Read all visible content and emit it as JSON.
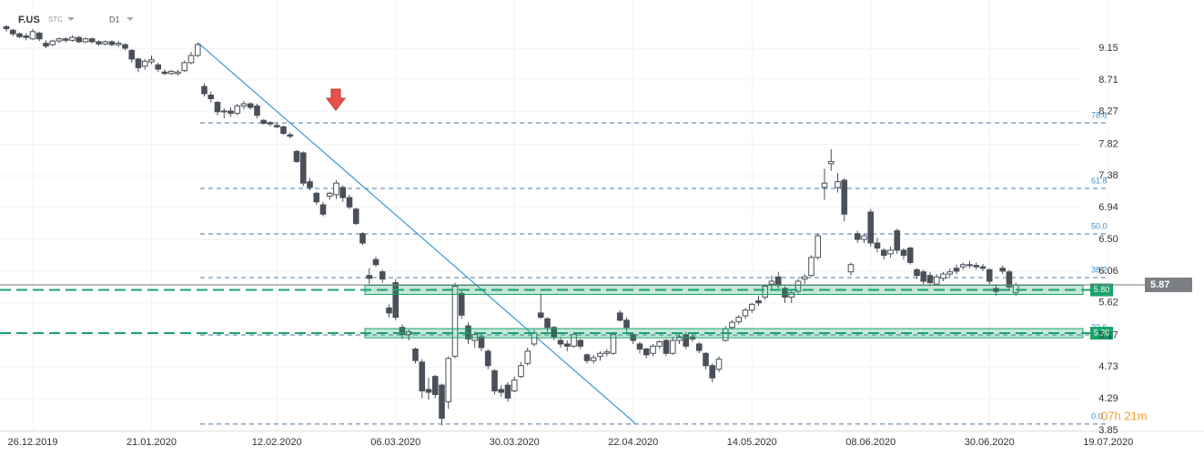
{
  "header": {
    "symbol": "F.US",
    "source": "STC",
    "interval": "D1"
  },
  "chart_data": {
    "type": "candlestick",
    "categories": [
      null,
      null,
      null,
      null,
      "26.12.2019",
      null,
      null,
      null,
      null,
      null,
      null,
      null,
      null,
      null,
      null,
      null,
      null,
      null,
      null,
      null,
      null,
      null,
      "21.01.2020",
      null,
      null,
      null,
      null,
      null,
      null,
      null,
      null,
      null,
      null,
      null,
      null,
      null,
      null,
      null,
      null,
      null,
      null,
      "12.02.2020",
      null,
      null,
      null,
      null,
      null,
      null,
      null,
      null,
      null,
      null,
      null,
      null,
      null,
      null,
      null,
      null,
      null,
      "06.03.2020",
      null,
      null,
      null,
      null,
      null,
      null,
      null,
      null,
      null,
      null,
      null,
      null,
      null,
      null,
      null,
      null,
      null,
      "30.03.2020",
      null,
      null,
      null,
      null,
      null,
      null,
      null,
      null,
      null,
      null,
      null,
      null,
      null,
      null,
      null,
      null,
      null,
      "22.04.2020",
      null,
      null,
      null,
      null,
      null,
      null,
      null,
      null,
      null,
      null,
      null,
      null,
      null,
      null,
      null,
      null,
      null,
      "14.05.2020",
      null,
      null,
      null,
      null,
      null,
      null,
      null,
      null,
      null,
      null,
      null,
      null,
      null,
      null,
      null,
      null,
      null,
      "08.06.2020",
      null,
      null,
      null,
      null,
      null,
      null,
      null,
      null,
      null,
      null,
      null,
      null,
      null,
      null,
      null,
      null,
      null,
      "30.06.2020",
      null,
      null,
      null,
      null,
      null,
      null,
      null,
      null,
      null,
      null,
      null,
      null,
      null,
      null,
      null,
      null,
      null,
      "19.07.2020"
    ],
    "candles": [
      [
        9.45,
        9.47,
        9.38,
        9.42
      ],
      [
        9.4,
        9.42,
        9.32,
        9.35
      ],
      [
        9.35,
        9.37,
        9.29,
        9.31
      ],
      [
        9.32,
        9.36,
        9.26,
        9.3
      ],
      [
        9.28,
        9.42,
        9.26,
        9.38
      ],
      [
        9.36,
        9.38,
        9.25,
        9.28
      ],
      [
        9.22,
        9.26,
        9.15,
        9.18
      ],
      [
        9.2,
        9.27,
        9.18,
        9.25
      ],
      [
        9.25,
        9.3,
        9.22,
        9.28
      ],
      [
        9.28,
        9.3,
        9.23,
        9.26
      ],
      [
        9.26,
        9.33,
        9.24,
        9.3
      ],
      [
        9.3,
        9.32,
        9.22,
        9.24
      ],
      [
        9.24,
        9.3,
        9.22,
        9.28
      ],
      [
        9.28,
        9.3,
        9.22,
        9.24
      ],
      [
        9.24,
        9.26,
        9.18,
        9.21
      ],
      [
        9.21,
        9.26,
        9.19,
        9.24
      ],
      [
        9.24,
        9.26,
        9.18,
        9.2
      ],
      [
        9.2,
        9.25,
        9.17,
        9.22
      ],
      [
        9.2,
        9.22,
        9.12,
        9.15
      ],
      [
        9.12,
        9.14,
        8.95,
        9.0
      ],
      [
        9.0,
        9.02,
        8.82,
        8.88
      ],
      [
        8.9,
        9.0,
        8.85,
        8.97
      ],
      [
        8.96,
        9.05,
        8.93,
        8.99
      ],
      [
        8.92,
        8.95,
        8.82,
        8.86
      ],
      [
        8.82,
        8.86,
        8.78,
        8.8
      ],
      [
        8.8,
        8.85,
        8.78,
        8.83
      ],
      [
        8.8,
        8.85,
        8.77,
        8.82
      ],
      [
        8.84,
        8.98,
        8.82,
        8.95
      ],
      [
        8.95,
        9.1,
        8.93,
        9.05
      ],
      [
        9.05,
        9.22,
        9.03,
        9.2
      ],
      [
        8.62,
        8.66,
        8.48,
        8.52
      ],
      [
        8.5,
        8.55,
        8.4,
        8.45
      ],
      [
        8.4,
        8.42,
        8.22,
        8.27
      ],
      [
        8.27,
        8.32,
        8.18,
        8.28
      ],
      [
        8.28,
        8.33,
        8.2,
        8.25
      ],
      [
        8.25,
        8.38,
        8.22,
        8.35
      ],
      [
        8.35,
        8.42,
        8.3,
        8.38
      ],
      [
        8.38,
        8.4,
        8.3,
        8.33
      ],
      [
        8.35,
        8.38,
        8.18,
        8.22
      ],
      [
        8.15,
        8.17,
        8.09,
        8.11
      ],
      [
        8.12,
        8.14,
        8.07,
        8.1
      ],
      [
        8.08,
        8.12,
        8.04,
        8.06
      ],
      [
        8.06,
        8.08,
        7.95,
        7.97
      ],
      [
        7.95,
        7.98,
        7.9,
        7.93
      ],
      [
        7.72,
        7.74,
        7.56,
        7.58
      ],
      [
        7.7,
        7.72,
        7.24,
        7.28
      ],
      [
        7.3,
        7.35,
        7.18,
        7.22
      ],
      [
        7.14,
        7.16,
        6.98,
        7.02
      ],
      [
        6.98,
        7.02,
        6.82,
        6.85
      ],
      [
        7.1,
        7.16,
        7.05,
        7.14
      ],
      [
        7.12,
        7.32,
        7.06,
        7.28
      ],
      [
        7.22,
        7.25,
        7.02,
        7.08
      ],
      [
        7.08,
        7.12,
        6.92,
        6.95
      ],
      [
        6.92,
        6.94,
        6.7,
        6.72
      ],
      [
        6.58,
        6.6,
        6.42,
        6.45
      ],
      [
        6.0,
        6.1,
        5.88,
        5.96
      ],
      [
        6.22,
        6.26,
        6.12,
        6.15
      ],
      [
        6.05,
        6.08,
        5.9,
        5.95
      ],
      [
        5.55,
        5.6,
        5.42,
        5.48
      ],
      [
        5.9,
        5.95,
        5.38,
        5.42
      ],
      [
        5.28,
        5.32,
        5.12,
        5.18
      ],
      [
        5.18,
        5.25,
        5.1,
        5.22
      ],
      [
        4.98,
        5.0,
        4.78,
        4.82
      ],
      [
        4.8,
        4.84,
        4.3,
        4.4
      ],
      [
        4.42,
        4.58,
        4.28,
        4.38
      ],
      [
        4.6,
        4.62,
        4.3,
        4.35
      ],
      [
        4.48,
        4.5,
        3.92,
        4.02
      ],
      [
        4.25,
        4.88,
        4.15,
        4.85
      ],
      [
        4.88,
        5.9,
        4.85,
        5.85
      ],
      [
        5.75,
        5.8,
        5.4,
        5.45
      ],
      [
        5.3,
        5.35,
        5.05,
        5.12
      ],
      [
        5.1,
        5.22,
        5.0,
        5.18
      ],
      [
        5.15,
        5.18,
        4.95,
        5.0
      ],
      [
        4.95,
        4.98,
        4.7,
        4.75
      ],
      [
        4.68,
        4.7,
        4.35,
        4.4
      ],
      [
        4.42,
        4.48,
        4.32,
        4.38
      ],
      [
        4.48,
        4.52,
        4.25,
        4.3
      ],
      [
        4.4,
        4.6,
        4.38,
        4.55
      ],
      [
        4.6,
        4.8,
        4.58,
        4.75
      ],
      [
        4.78,
        5.0,
        4.75,
        4.95
      ],
      [
        5.05,
        5.25,
        5.02,
        5.2
      ],
      [
        5.48,
        5.75,
        5.4,
        5.42
      ],
      [
        5.4,
        5.42,
        5.22,
        5.28
      ],
      [
        5.28,
        5.3,
        5.1,
        5.15
      ],
      [
        5.1,
        5.15,
        5.0,
        5.05
      ],
      [
        5.05,
        5.1,
        4.95,
        5.02
      ],
      [
        5.02,
        5.22,
        5.0,
        5.18
      ],
      [
        5.1,
        5.12,
        4.98,
        5.02
      ],
      [
        4.9,
        4.92,
        4.78,
        4.82
      ],
      [
        4.82,
        4.9,
        4.78,
        4.86
      ],
      [
        4.88,
        4.95,
        4.82,
        4.92
      ],
      [
        4.92,
        4.98,
        4.88,
        4.94
      ],
      [
        4.92,
        5.2,
        4.9,
        5.18
      ],
      [
        5.48,
        5.52,
        5.36,
        5.38
      ],
      [
        5.38,
        5.42,
        5.22,
        5.28
      ],
      [
        5.18,
        5.2,
        5.05,
        5.1
      ],
      [
        5.05,
        5.08,
        4.92,
        4.98
      ],
      [
        4.98,
        5.0,
        4.85,
        4.9
      ],
      [
        4.92,
        5.05,
        4.88,
        5.02
      ],
      [
        5.02,
        5.1,
        4.98,
        5.08
      ],
      [
        5.1,
        5.12,
        4.88,
        4.92
      ],
      [
        4.92,
        5.15,
        4.9,
        5.1
      ],
      [
        5.1,
        5.18,
        5.05,
        5.15
      ],
      [
        5.18,
        5.22,
        4.98,
        5.02
      ],
      [
        5.15,
        5.2,
        5.08,
        5.12
      ],
      [
        5.05,
        5.08,
        4.92,
        4.96
      ],
      [
        4.92,
        4.94,
        4.7,
        4.75
      ],
      [
        4.75,
        4.78,
        4.52,
        4.58
      ],
      [
        4.7,
        4.88,
        4.66,
        4.84
      ],
      [
        5.1,
        5.3,
        5.08,
        5.26
      ],
      [
        5.28,
        5.38,
        5.25,
        5.35
      ],
      [
        5.36,
        5.45,
        5.32,
        5.42
      ],
      [
        5.44,
        5.55,
        5.4,
        5.52
      ],
      [
        5.52,
        5.62,
        5.48,
        5.6
      ],
      [
        5.65,
        5.72,
        5.58,
        5.62
      ],
      [
        5.7,
        5.88,
        5.66,
        5.85
      ],
      [
        5.88,
        6.0,
        5.8,
        5.92
      ],
      [
        5.98,
        6.05,
        5.82,
        5.86
      ],
      [
        5.82,
        5.85,
        5.62,
        5.7
      ],
      [
        5.7,
        5.8,
        5.62,
        5.76
      ],
      [
        5.78,
        5.95,
        5.75,
        5.92
      ],
      [
        5.95,
        6.02,
        5.88,
        5.98
      ],
      [
        6.0,
        6.28,
        5.98,
        6.25
      ],
      [
        6.25,
        6.58,
        6.22,
        6.55
      ],
      [
        7.22,
        7.48,
        7.05,
        7.28
      ],
      [
        7.55,
        7.75,
        7.45,
        7.58
      ],
      [
        7.22,
        7.42,
        7.15,
        7.3
      ],
      [
        7.32,
        7.35,
        6.75,
        6.85
      ],
      [
        6.05,
        6.18,
        6.0,
        6.15
      ],
      [
        6.58,
        6.62,
        6.45,
        6.5
      ],
      [
        6.5,
        6.58,
        6.45,
        6.55
      ],
      [
        6.88,
        6.92,
        6.4,
        6.45
      ],
      [
        6.45,
        6.52,
        6.32,
        6.38
      ],
      [
        6.35,
        6.38,
        6.22,
        6.28
      ],
      [
        6.3,
        6.4,
        6.25,
        6.35
      ],
      [
        6.62,
        6.65,
        6.3,
        6.35
      ],
      [
        6.35,
        6.38,
        6.22,
        6.28
      ],
      [
        6.38,
        6.4,
        6.15,
        6.18
      ],
      [
        6.08,
        6.1,
        5.95,
        6.0
      ],
      [
        6.05,
        6.08,
        5.88,
        5.92
      ],
      [
        6.0,
        6.05,
        5.85,
        5.9
      ],
      [
        5.88,
        6.02,
        5.86,
        5.98
      ],
      [
        5.96,
        6.05,
        5.92,
        6.02
      ],
      [
        6.02,
        6.1,
        5.98,
        6.05
      ],
      [
        6.1,
        6.15,
        6.02,
        6.06
      ],
      [
        6.12,
        6.18,
        6.08,
        6.15
      ],
      [
        6.15,
        6.2,
        6.1,
        6.14
      ],
      [
        6.14,
        6.18,
        6.08,
        6.12
      ],
      [
        6.12,
        6.16,
        6.06,
        6.1
      ],
      [
        6.08,
        6.1,
        5.88,
        5.92
      ],
      [
        5.82,
        5.88,
        5.72,
        5.78
      ],
      [
        6.1,
        6.14,
        6.02,
        6.06
      ],
      [
        6.05,
        6.08,
        5.8,
        5.84
      ],
      [
        5.76,
        5.9,
        5.72,
        5.87
      ],
      null,
      null,
      null,
      null,
      null,
      null,
      null,
      null,
      null,
      null,
      null,
      null,
      null,
      null
    ],
    "ylim": [
      3.636,
      9.819
    ],
    "yticks": [
      9.15,
      8.71,
      8.27,
      7.82,
      7.38,
      6.94,
      {
        "value": 6.5,
        "label": "6.50"
      },
      6.06,
      5.62,
      5.17,
      4.73,
      4.29,
      3.85
    ],
    "grid": true,
    "up_color": "#ffffff",
    "down_color": "#4a5059",
    "fib_levels": [
      {
        "label": "78.6",
        "price": 8.115
      },
      {
        "label": "61.8",
        "price": 7.207
      },
      {
        "label": "50.0",
        "price": 6.576
      },
      {
        "label": "38.2",
        "price": 5.97
      },
      {
        "label": "23.6",
        "price": 5.175
      },
      {
        "label": "0.0",
        "price": 3.94
      }
    ],
    "levels": [
      {
        "value": 5.8,
        "label": "5.80",
        "color": "#1aa36b"
      },
      {
        "value": 5.2,
        "label": "5.20",
        "color": "#1aa36b"
      }
    ],
    "last_price": {
      "value": 5.87,
      "label": "5.87"
    },
    "trendline": {
      "x": [
        29,
        95.3
      ],
      "y": [
        9.23,
        3.95
      ],
      "color": "#3a9ad9"
    },
    "countdown": "07h 21m"
  }
}
